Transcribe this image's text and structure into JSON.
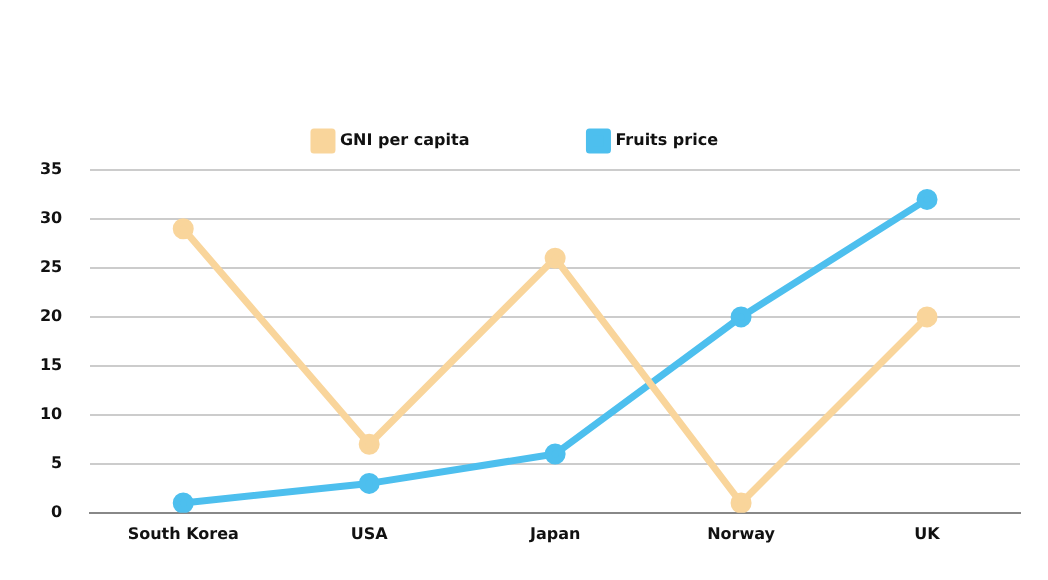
{
  "chart_data": {
    "type": "line",
    "categories": [
      "South Korea",
      "USA",
      "Japan",
      "Norway",
      "UK"
    ],
    "series": [
      {
        "name": "GNI per capita",
        "color": "#f9d59b",
        "values": [
          29,
          7,
          26,
          1,
          20
        ]
      },
      {
        "name": "Fruits price",
        "color": "#4dbfee",
        "values": [
          1,
          3,
          6,
          20,
          32
        ]
      }
    ],
    "ylim": [
      0,
      35
    ],
    "yticks": [
      0,
      5,
      10,
      15,
      20,
      25,
      30,
      35
    ],
    "grid": "y",
    "legend": "top",
    "marker": "circle",
    "line_style": "solid"
  }
}
